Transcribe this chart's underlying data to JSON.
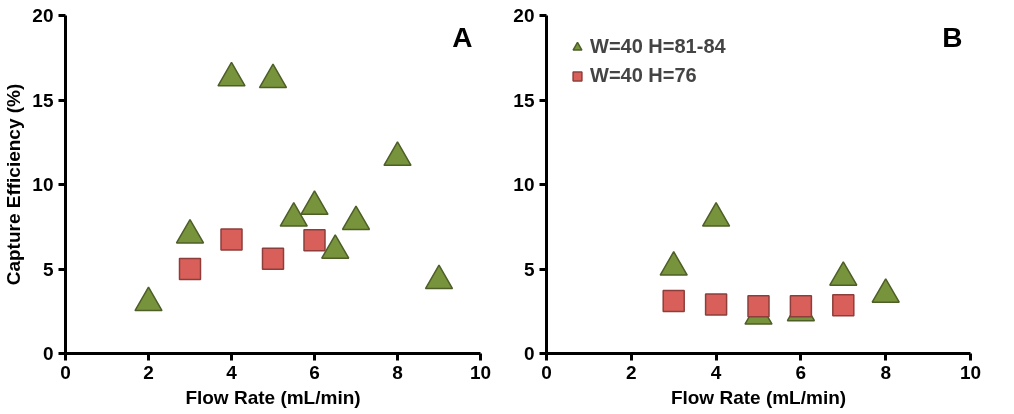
{
  "chart_data": [
    {
      "type": "scatter",
      "xlabel": "Flow Rate (mL/min)",
      "ylabel": "Capture Efficiency (%)",
      "annotations": [
        "A"
      ],
      "xlim": [
        0,
        10
      ],
      "xticks": [
        0,
        2,
        4,
        6,
        8,
        10
      ],
      "ylim": [
        0,
        20
      ],
      "yticks": [
        0,
        5,
        10,
        15,
        20
      ],
      "grid": false,
      "legend": false,
      "series": [
        {
          "marker": "triangle",
          "color": "#77933c",
          "x": [
            2,
            3,
            4,
            5,
            5.5,
            6,
            6.5,
            7,
            8,
            9
          ],
          "values": [
            3.0,
            7.0,
            16.3,
            16.2,
            8.0,
            8.7,
            6.1,
            7.8,
            11.6,
            4.3
          ]
        },
        {
          "marker": "square",
          "color": "#d9605a",
          "x": [
            3,
            4,
            5,
            6
          ],
          "values": [
            5.0,
            6.75,
            5.6,
            6.7
          ]
        }
      ]
    },
    {
      "type": "scatter",
      "xlabel": "Flow Rate (mL/min)",
      "annotations": [
        "B"
      ],
      "xlim": [
        0,
        10
      ],
      "xticks": [
        0,
        2,
        4,
        6,
        8,
        10
      ],
      "ylim": [
        0,
        20
      ],
      "yticks": [
        0,
        5,
        10,
        15,
        20
      ],
      "grid": false,
      "legend": "top left",
      "series": [
        {
          "name": "W=40 H=81-84",
          "marker": "triangle",
          "color": "#77933c",
          "x": [
            3,
            4,
            5,
            6,
            7,
            8
          ],
          "values": [
            5.1,
            8.0,
            2.2,
            2.4,
            4.5,
            3.5
          ]
        },
        {
          "name": "W=40 H=76",
          "marker": "square",
          "color": "#d9605a",
          "x": [
            3,
            4,
            5,
            6,
            7
          ],
          "values": [
            3.1,
            2.9,
            2.8,
            2.8,
            2.85
          ]
        }
      ]
    }
  ]
}
